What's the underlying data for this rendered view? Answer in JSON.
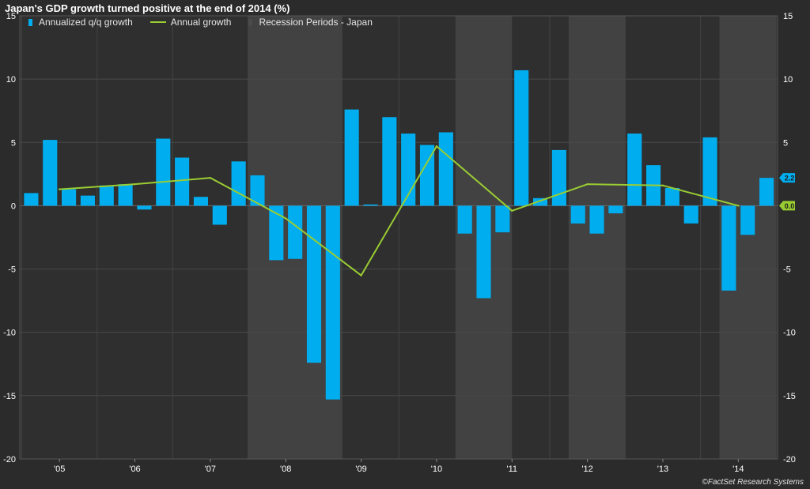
{
  "chart_data": {
    "type": "bar",
    "title": "Japan's GDP growth turned positive at the end of 2014 (%)",
    "source": "©FactSet Research Systems",
    "ylim": [
      -20,
      15
    ],
    "yticks": [
      15,
      10,
      5,
      0,
      -5,
      -10,
      -15,
      -20
    ],
    "x_tick_labels": [
      "'05",
      "'06",
      "'07",
      "'08",
      "'09",
      "'10",
      "'11",
      "'12",
      "'13",
      "'14"
    ],
    "legend": [
      "Annualized q/q growth",
      "Annual growth",
      "Recession Periods - Japan"
    ],
    "legend_position": "top-left",
    "grid": true,
    "series": [
      {
        "name": "Annualized q/q growth",
        "type": "bar",
        "color": "#00adef",
        "quarters": [
          "2005Q1",
          "2005Q2",
          "2005Q3",
          "2005Q4",
          "2006Q1",
          "2006Q2",
          "2006Q3",
          "2006Q4",
          "2007Q1",
          "2007Q2",
          "2007Q3",
          "2007Q4",
          "2008Q1",
          "2008Q2",
          "2008Q3",
          "2008Q4",
          "2009Q1",
          "2009Q2",
          "2009Q3",
          "2009Q4",
          "2010Q1",
          "2010Q2",
          "2010Q3",
          "2010Q4",
          "2011Q1",
          "2011Q2",
          "2011Q3",
          "2011Q4",
          "2012Q1",
          "2012Q2",
          "2012Q3",
          "2012Q4",
          "2013Q1",
          "2013Q2",
          "2013Q3",
          "2013Q4",
          "2014Q1",
          "2014Q2",
          "2014Q3",
          "2014Q4"
        ],
        "values": [
          1.0,
          5.2,
          1.3,
          0.8,
          1.6,
          1.7,
          -0.3,
          5.3,
          3.8,
          0.7,
          -1.5,
          3.5,
          2.4,
          -4.3,
          -4.2,
          -12.4,
          -15.3,
          7.6,
          0.1,
          7.0,
          5.7,
          4.8,
          5.8,
          -2.2,
          -7.3,
          -2.1,
          10.7,
          0.6,
          4.4,
          -1.4,
          -2.2,
          -0.6,
          5.7,
          3.2,
          1.4,
          -1.4,
          5.4,
          -6.7,
          -2.3,
          2.2
        ]
      },
      {
        "name": "Annual growth",
        "type": "line",
        "color": "#9acd32",
        "years": [
          "2005",
          "2006",
          "2007",
          "2008",
          "2009",
          "2010",
          "2011",
          "2012",
          "2013",
          "2014"
        ],
        "values": [
          1.3,
          1.7,
          2.2,
          -1.0,
          -5.5,
          4.7,
          -0.4,
          1.7,
          1.6,
          0.0
        ]
      }
    ],
    "recession_periods": [
      [
        "2008Q1",
        "2009Q1"
      ],
      [
        "2010Q4",
        "2011Q2"
      ],
      [
        "2012Q2",
        "2012Q4"
      ],
      [
        "2014Q2",
        "2014Q4"
      ]
    ],
    "end_labels": [
      {
        "text": "2.2",
        "value": 2.2,
        "color": "#00adef"
      },
      {
        "text": "0.0",
        "value": 0.0,
        "color": "#9acd32"
      }
    ]
  }
}
